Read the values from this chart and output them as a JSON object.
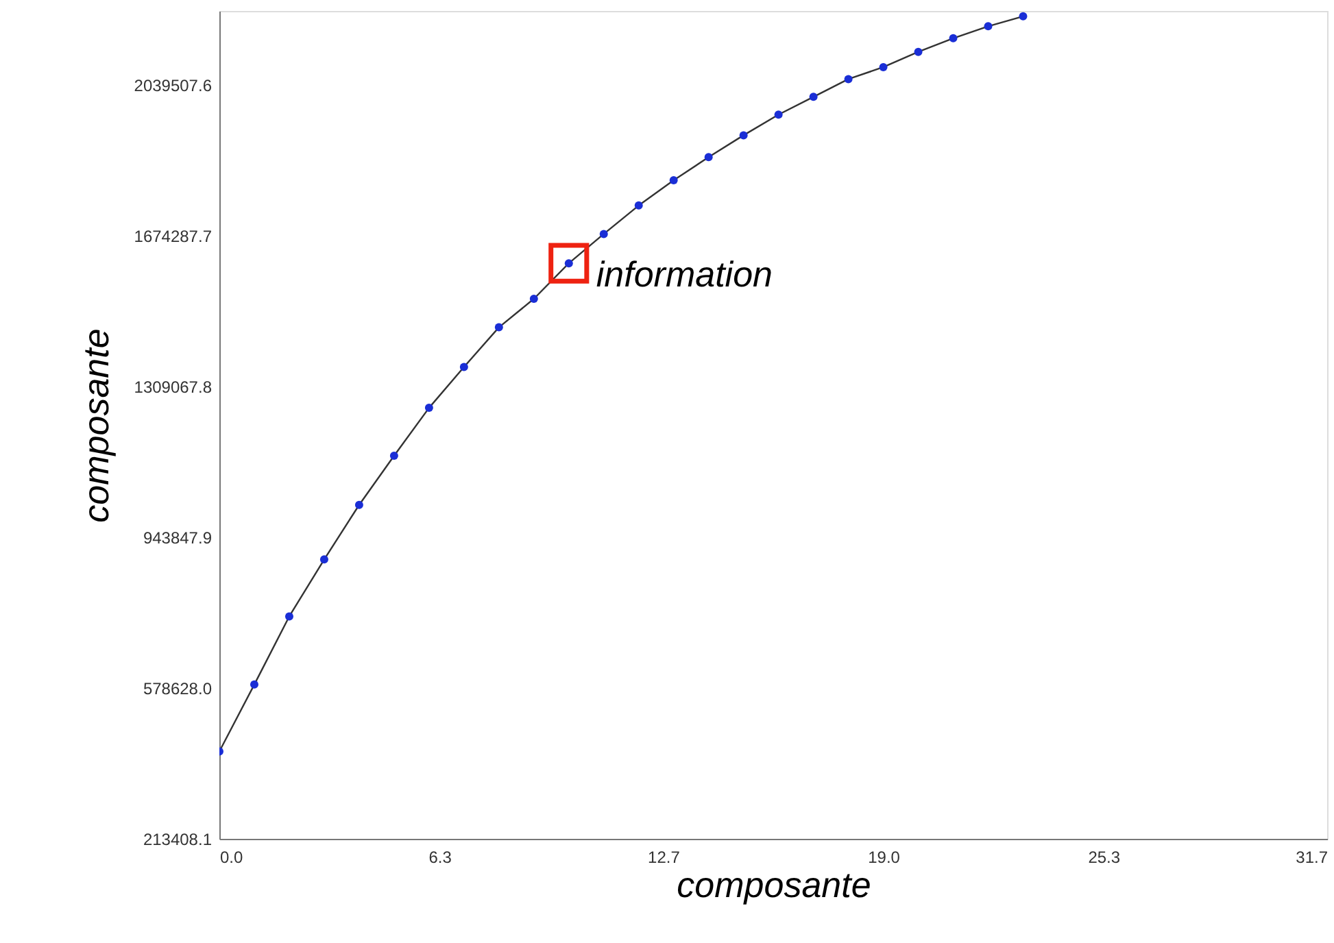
{
  "chart_data": {
    "type": "line",
    "xlabel": "composante",
    "ylabel": "composante",
    "x": [
      0,
      1,
      2,
      3,
      4,
      5,
      6,
      7,
      8,
      9,
      10,
      11,
      12,
      13,
      14,
      15,
      16,
      17,
      18,
      19,
      20,
      21,
      22,
      23
    ],
    "series": [
      {
        "color": "#1a2ed6",
        "values": [
          425000,
          587000,
          752000,
          890000,
          1022000,
          1141000,
          1257000,
          1356000,
          1452000,
          1521000,
          1607000,
          1678000,
          1747000,
          1808000,
          1864000,
          1917000,
          1967000,
          2010000,
          2053000,
          2082000,
          2119000,
          2152000,
          2181000,
          2205000
        ]
      }
    ],
    "xlim": [
      0,
      31.7
    ],
    "ylim": [
      213408.1,
      2218000
    ],
    "xticks": [
      {
        "value": 0,
        "label": "0.0"
      },
      {
        "value": 6.3,
        "label": "6.3"
      },
      {
        "value": 12.7,
        "label": "12.7"
      },
      {
        "value": 19.0,
        "label": "19.0"
      },
      {
        "value": 25.3,
        "label": "25.3"
      },
      {
        "value": 31.7,
        "label": "31.7"
      }
    ],
    "yticks": [
      213408.1,
      {
        "value": 578628.0,
        "label": "578628.0"
      },
      943847.9,
      1309067.8,
      1674287.7,
      2039507.6
    ],
    "annotations": [
      {
        "text": "information",
        "x": 10,
        "y": 1607000
      }
    ],
    "marker": "circle",
    "line_style": "solid",
    "grid": false
  }
}
